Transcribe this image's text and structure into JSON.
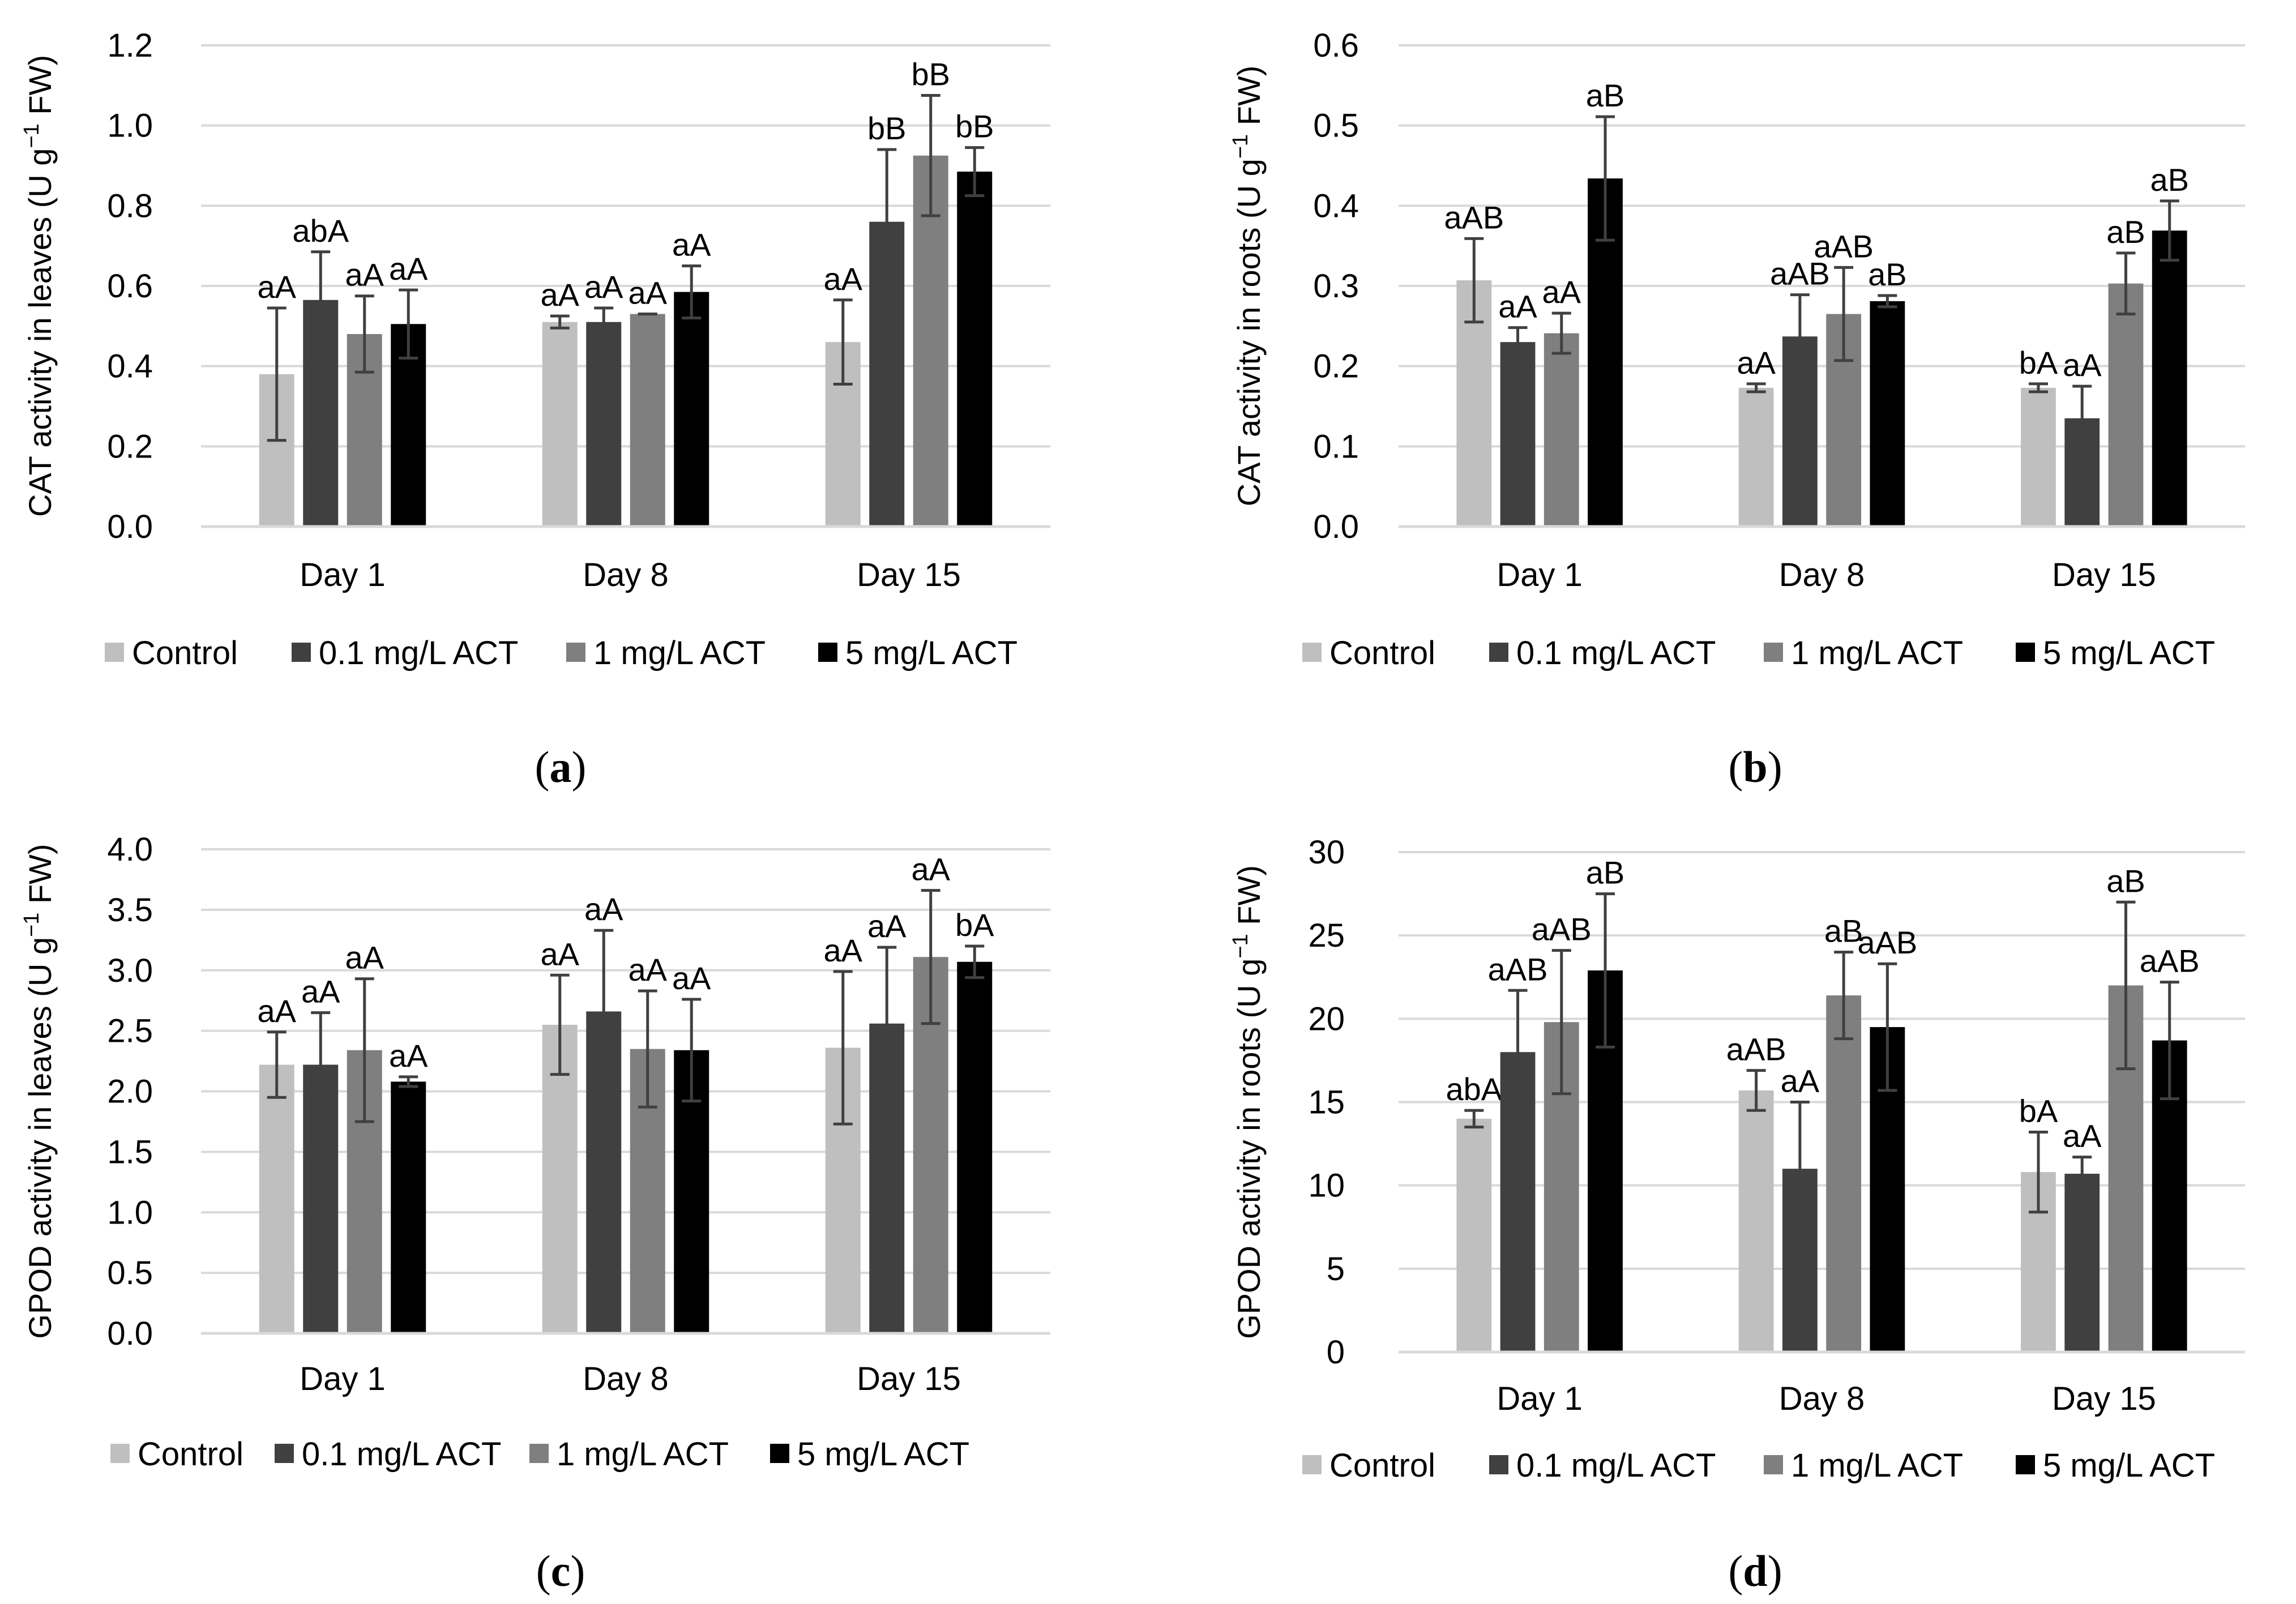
{
  "colors": {
    "Control": "#bfbfbf",
    "0.1 mg/L ACT": "#404040",
    "1 mg/L ACT": "#7f7f7f",
    "5 mg/L ACT": "#000000",
    "error": "#404040",
    "grid": "#d9d9d9",
    "text": "#000000"
  },
  "panel_labels": [
    "a",
    "b",
    "c",
    "d"
  ],
  "chart_data": [
    {
      "type": "bar",
      "panel": "a",
      "categories": [
        "Day 1",
        "Day 8",
        "Day 15"
      ],
      "series": [
        {
          "name": "Control",
          "values": [
            0.38,
            0.51,
            0.46
          ],
          "errors": [
            0.165,
            0.015,
            0.105
          ],
          "letters": [
            "aA",
            "aA",
            "aA"
          ]
        },
        {
          "name": "0.1 mg/L ACT",
          "values": [
            0.565,
            0.51,
            0.76
          ],
          "errors": [
            0.12,
            0.035,
            0.18
          ],
          "letters": [
            "abA",
            "aA",
            "bB"
          ]
        },
        {
          "name": "1 mg/L ACT",
          "values": [
            0.48,
            0.53,
            0.925
          ],
          "errors": [
            0.095,
            0.0,
            0.15
          ],
          "letters": [
            "aA",
            "aA",
            "bB"
          ]
        },
        {
          "name": "5 mg/L ACT",
          "values": [
            0.505,
            0.585,
            0.885
          ],
          "errors": [
            0.085,
            0.065,
            0.06
          ],
          "letters": [
            "aA",
            "aA",
            "bB"
          ]
        }
      ],
      "ylim": [
        0,
        1.2
      ],
      "ystep": 0.2,
      "ydecimals": 1,
      "ylabel_pre": "CAT activity  in leaves  (U g",
      "ylabel_sup": "−1",
      "ylabel_post": " FW)",
      "xlabel": "",
      "legend": "bottom",
      "grid": true
    },
    {
      "type": "bar",
      "panel": "b",
      "categories": [
        "Day 1",
        "Day 8",
        "Day 15"
      ],
      "series": [
        {
          "name": "Control",
          "values": [
            0.307,
            0.173,
            0.173
          ],
          "errors": [
            0.052,
            0.005,
            0.005
          ],
          "letters": [
            "aAB",
            "aA",
            "bA"
          ]
        },
        {
          "name": "0.1 mg/L ACT",
          "values": [
            0.23,
            0.237,
            0.135
          ],
          "errors": [
            0.018,
            0.052,
            0.04
          ],
          "letters": [
            "aA",
            "aAB",
            "aA"
          ]
        },
        {
          "name": "1 mg/L ACT",
          "values": [
            0.241,
            0.265,
            0.303
          ],
          "errors": [
            0.025,
            0.058,
            0.038
          ],
          "letters": [
            "aA",
            "aAB",
            "aB"
          ]
        },
        {
          "name": "5 mg/L ACT",
          "values": [
            0.434,
            0.281,
            0.369
          ],
          "errors": [
            0.077,
            0.007,
            0.037
          ],
          "letters": [
            "aB",
            "aB",
            "aB"
          ]
        }
      ],
      "ylim": [
        0,
        0.6
      ],
      "ystep": 0.1,
      "ydecimals": 1,
      "ylabel_pre": "CAT activity  in roots (U g",
      "ylabel_sup": "−1",
      "ylabel_post": " FW)",
      "xlabel": "",
      "legend": "bottom",
      "grid": true
    },
    {
      "type": "bar",
      "panel": "c",
      "categories": [
        "Day 1",
        "Day 8",
        "Day 15"
      ],
      "series": [
        {
          "name": "Control",
          "values": [
            2.22,
            2.55,
            2.36
          ],
          "errors": [
            0.27,
            0.41,
            0.63
          ],
          "letters": [
            "aA",
            "aA",
            "aA"
          ]
        },
        {
          "name": "0.1 mg/L ACT",
          "values": [
            2.22,
            2.66,
            2.56
          ],
          "errors": [
            0.43,
            0.67,
            0.63
          ],
          "letters": [
            "aA",
            "aA",
            "aA"
          ]
        },
        {
          "name": "1 mg/L ACT",
          "values": [
            2.34,
            2.35,
            3.11
          ],
          "errors": [
            0.59,
            0.48,
            0.55
          ],
          "letters": [
            "aA",
            "aA",
            "aA"
          ]
        },
        {
          "name": "5 mg/L ACT",
          "values": [
            2.08,
            2.34,
            3.07
          ],
          "errors": [
            0.04,
            0.42,
            0.13
          ],
          "letters": [
            "aA",
            "aA",
            "bA"
          ]
        }
      ],
      "ylim": [
        0,
        4.0
      ],
      "ystep": 0.5,
      "ydecimals": 1,
      "ylabel_pre": "GPOD activity  in leaves (U g",
      "ylabel_sup": "−1",
      "ylabel_post": " FW)",
      "xlabel": "",
      "legend": "bottom",
      "grid": true
    },
    {
      "type": "bar",
      "panel": "d",
      "categories": [
        "Day 1",
        "Day 8",
        "Day 15"
      ],
      "series": [
        {
          "name": "Control",
          "values": [
            14.0,
            15.7,
            10.8
          ],
          "errors": [
            0.5,
            1.2,
            2.4
          ],
          "letters": [
            "abA",
            "aAB",
            "bA"
          ]
        },
        {
          "name": "0.1 mg/L ACT",
          "values": [
            18.0,
            11.0,
            10.7
          ],
          "errors": [
            3.7,
            4.0,
            1.0
          ],
          "letters": [
            "aAB",
            "aA",
            "aA"
          ]
        },
        {
          "name": "1 mg/L ACT",
          "values": [
            19.8,
            21.4,
            22.0
          ],
          "errors": [
            4.3,
            2.6,
            5.0
          ],
          "letters": [
            "aAB",
            "aB",
            "aB"
          ]
        },
        {
          "name": "5 mg/L ACT",
          "values": [
            22.9,
            19.5,
            18.7
          ],
          "errors": [
            4.6,
            3.8,
            3.5
          ],
          "letters": [
            "aB",
            "aAB",
            "aAB"
          ]
        }
      ],
      "ylim": [
        0,
        30
      ],
      "ystep": 5,
      "ydecimals": 0,
      "ylabel_pre": "GPOD activity  in roots (U g",
      "ylabel_sup": "−1",
      "ylabel_post": " FW)",
      "xlabel": "",
      "legend": "bottom",
      "grid": true
    }
  ]
}
